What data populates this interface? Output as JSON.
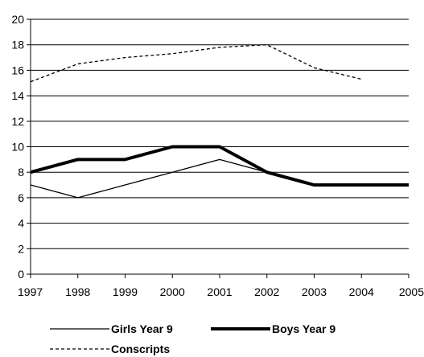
{
  "chart_data": {
    "type": "line",
    "x": [
      1997,
      1998,
      1999,
      2000,
      2001,
      2002,
      2003,
      2004,
      2005
    ],
    "xlim": [
      1997,
      2005
    ],
    "ylim": [
      0,
      20
    ],
    "yticks": [
      0,
      2,
      4,
      6,
      8,
      10,
      12,
      14,
      16,
      18,
      20
    ],
    "grid": "horizontal",
    "legend": "bottom",
    "series": [
      {
        "name": "Girls Year 9",
        "style": "thin-solid",
        "color": "#000000",
        "values": [
          7,
          6,
          7,
          8,
          9,
          8,
          7,
          7,
          7
        ]
      },
      {
        "name": "Boys Year 9",
        "style": "thick-solid",
        "color": "#000000",
        "values": [
          8,
          9,
          9,
          10,
          10,
          8,
          7,
          7,
          7
        ]
      },
      {
        "name": "Conscripts",
        "style": "dashed",
        "color": "#000000",
        "values": [
          15.1,
          16.5,
          17.0,
          17.3,
          17.8,
          18.0,
          16.2,
          15.3,
          null
        ]
      }
    ]
  }
}
